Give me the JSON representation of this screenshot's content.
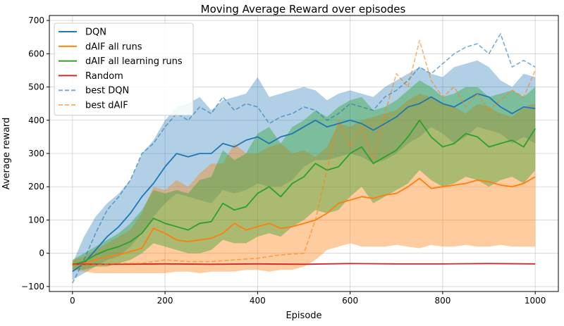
{
  "chart_data": {
    "type": "line",
    "title": "Moving Average Reward over episodes",
    "xlabel": "Episode",
    "ylabel": "Average reward",
    "xlim": [
      -50,
      1050
    ],
    "ylim": [
      -115,
      715
    ],
    "xticks": [
      0,
      200,
      400,
      600,
      800,
      1000
    ],
    "yticks": [
      -100,
      0,
      100,
      200,
      300,
      400,
      500,
      600,
      700
    ],
    "grid": true,
    "legend_position": "top-left",
    "series": [
      {
        "name": "DQN",
        "color": "#1f77b4",
        "style": "solid",
        "band_alpha": 0.35,
        "x": [
          0,
          25,
          50,
          75,
          100,
          125,
          150,
          175,
          200,
          225,
          250,
          275,
          300,
          325,
          350,
          375,
          400,
          425,
          450,
          475,
          500,
          525,
          550,
          575,
          600,
          625,
          650,
          675,
          700,
          725,
          750,
          775,
          800,
          825,
          850,
          875,
          900,
          925,
          950,
          975,
          1000
        ],
        "y": [
          -55,
          -30,
          10,
          50,
          80,
          120,
          170,
          210,
          260,
          300,
          290,
          300,
          300,
          330,
          320,
          340,
          350,
          330,
          350,
          360,
          380,
          400,
          380,
          390,
          400,
          390,
          370,
          390,
          410,
          440,
          450,
          470,
          450,
          440,
          460,
          480,
          470,
          440,
          420,
          440,
          435
        ],
        "upper": [
          -30,
          50,
          110,
          150,
          180,
          220,
          300,
          340,
          400,
          440,
          450,
          470,
          430,
          460,
          470,
          480,
          530,
          470,
          480,
          490,
          500,
          490,
          460,
          480,
          490,
          480,
          470,
          500,
          520,
          540,
          560,
          540,
          530,
          560,
          570,
          580,
          560,
          520,
          500,
          540,
          530
        ],
        "lower": [
          -80,
          -60,
          -40,
          -20,
          -10,
          20,
          60,
          110,
          150,
          180,
          170,
          160,
          150,
          190,
          180,
          190,
          210,
          200,
          200,
          220,
          260,
          280,
          280,
          290,
          300,
          290,
          270,
          280,
          300,
          330,
          350,
          380,
          360,
          330,
          350,
          380,
          370,
          360,
          330,
          350,
          330
        ]
      },
      {
        "name": "dAIF all runs",
        "color": "#ff7f0e",
        "style": "solid",
        "band_alpha": 0.4,
        "x": [
          0,
          25,
          50,
          75,
          100,
          125,
          150,
          175,
          200,
          225,
          250,
          275,
          300,
          325,
          350,
          375,
          400,
          425,
          450,
          475,
          500,
          525,
          550,
          575,
          600,
          625,
          650,
          675,
          700,
          725,
          750,
          775,
          800,
          825,
          850,
          875,
          900,
          925,
          950,
          975,
          1000
        ],
        "y": [
          -35,
          -30,
          -20,
          -10,
          -5,
          5,
          15,
          75,
          60,
          40,
          35,
          40,
          45,
          60,
          90,
          70,
          80,
          90,
          75,
          80,
          90,
          100,
          120,
          150,
          160,
          170,
          165,
          175,
          180,
          200,
          225,
          195,
          200,
          205,
          210,
          220,
          215,
          205,
          200,
          210,
          230
        ],
        "upper": [
          -20,
          -10,
          10,
          30,
          50,
          70,
          120,
          200,
          190,
          220,
          200,
          240,
          270,
          270,
          330,
          300,
          300,
          320,
          330,
          300,
          310,
          290,
          320,
          390,
          380,
          400,
          410,
          420,
          430,
          460,
          480,
          470,
          450,
          440,
          420,
          450,
          440,
          420,
          410,
          440,
          450
        ],
        "lower": [
          -50,
          -55,
          -60,
          -60,
          -60,
          -60,
          -60,
          -60,
          -60,
          -55,
          -55,
          -60,
          -55,
          -55,
          -55,
          -50,
          -50,
          -55,
          -50,
          -50,
          -40,
          -20,
          10,
          20,
          30,
          20,
          20,
          20,
          25,
          20,
          15,
          25,
          20,
          20,
          25,
          20,
          20,
          25,
          20,
          20,
          20
        ]
      },
      {
        "name": "dAIF all learning runs",
        "color": "#2ca02c",
        "style": "solid",
        "band_alpha": 0.4,
        "x": [
          0,
          25,
          50,
          75,
          100,
          125,
          150,
          175,
          200,
          225,
          250,
          275,
          300,
          325,
          350,
          375,
          400,
          425,
          450,
          475,
          500,
          525,
          550,
          575,
          600,
          625,
          650,
          675,
          700,
          725,
          750,
          775,
          800,
          825,
          850,
          875,
          900,
          925,
          950,
          975,
          1000
        ],
        "y": [
          -35,
          -25,
          -5,
          10,
          20,
          35,
          60,
          105,
          90,
          80,
          70,
          90,
          95,
          150,
          130,
          140,
          180,
          200,
          170,
          210,
          230,
          270,
          250,
          260,
          300,
          320,
          270,
          290,
          310,
          350,
          400,
          350,
          320,
          330,
          360,
          350,
          320,
          330,
          340,
          320,
          375
        ],
        "upper": [
          -20,
          0,
          20,
          40,
          60,
          90,
          130,
          190,
          180,
          190,
          180,
          220,
          230,
          310,
          280,
          300,
          360,
          380,
          330,
          380,
          400,
          430,
          410,
          440,
          460,
          470,
          430,
          440,
          460,
          490,
          520,
          500,
          470,
          480,
          500,
          500,
          470,
          480,
          490,
          470,
          500
        ],
        "lower": [
          -50,
          -50,
          -40,
          -40,
          -30,
          -20,
          0,
          30,
          20,
          10,
          0,
          0,
          10,
          40,
          30,
          30,
          50,
          60,
          50,
          80,
          100,
          130,
          120,
          130,
          170,
          200,
          150,
          170,
          190,
          210,
          250,
          220,
          200,
          210,
          230,
          220,
          200,
          220,
          230,
          210,
          250
        ]
      },
      {
        "name": "Random",
        "color": "#d62728",
        "style": "solid",
        "x": [
          0,
          100,
          200,
          300,
          400,
          500,
          600,
          700,
          800,
          900,
          1000
        ],
        "y": [
          -33,
          -33,
          -32,
          -33,
          -32,
          -33,
          -31,
          -32,
          -32,
          -31,
          -32
        ]
      },
      {
        "name": "best DQN",
        "color": "#1f77b4",
        "style": "dashed",
        "x": [
          0,
          25,
          50,
          75,
          100,
          125,
          150,
          175,
          200,
          225,
          250,
          275,
          300,
          325,
          350,
          375,
          400,
          425,
          450,
          475,
          500,
          525,
          550,
          575,
          600,
          625,
          650,
          675,
          700,
          725,
          750,
          775,
          800,
          825,
          850,
          875,
          900,
          925,
          950,
          975,
          1000
        ],
        "y": [
          -90,
          -20,
          60,
          130,
          170,
          220,
          300,
          330,
          380,
          420,
          400,
          440,
          420,
          470,
          430,
          450,
          440,
          390,
          410,
          420,
          440,
          430,
          400,
          420,
          450,
          440,
          430,
          470,
          490,
          520,
          560,
          540,
          570,
          600,
          620,
          630,
          600,
          660,
          560,
          580,
          560
        ]
      },
      {
        "name": "best dAIF",
        "color": "#ff7f0e",
        "style": "dashed",
        "x": [
          0,
          50,
          100,
          150,
          200,
          250,
          300,
          350,
          400,
          450,
          500,
          525,
          550,
          575,
          600,
          625,
          650,
          675,
          700,
          725,
          750,
          775,
          800,
          825,
          850,
          875,
          900,
          925,
          950,
          975,
          1000
        ],
        "y": [
          -35,
          -35,
          -30,
          -30,
          -20,
          -25,
          -25,
          -20,
          -15,
          -5,
          0,
          100,
          250,
          400,
          320,
          380,
          280,
          420,
          540,
          500,
          640,
          520,
          470,
          500,
          440,
          480,
          430,
          460,
          490,
          470,
          550
        ]
      }
    ]
  }
}
